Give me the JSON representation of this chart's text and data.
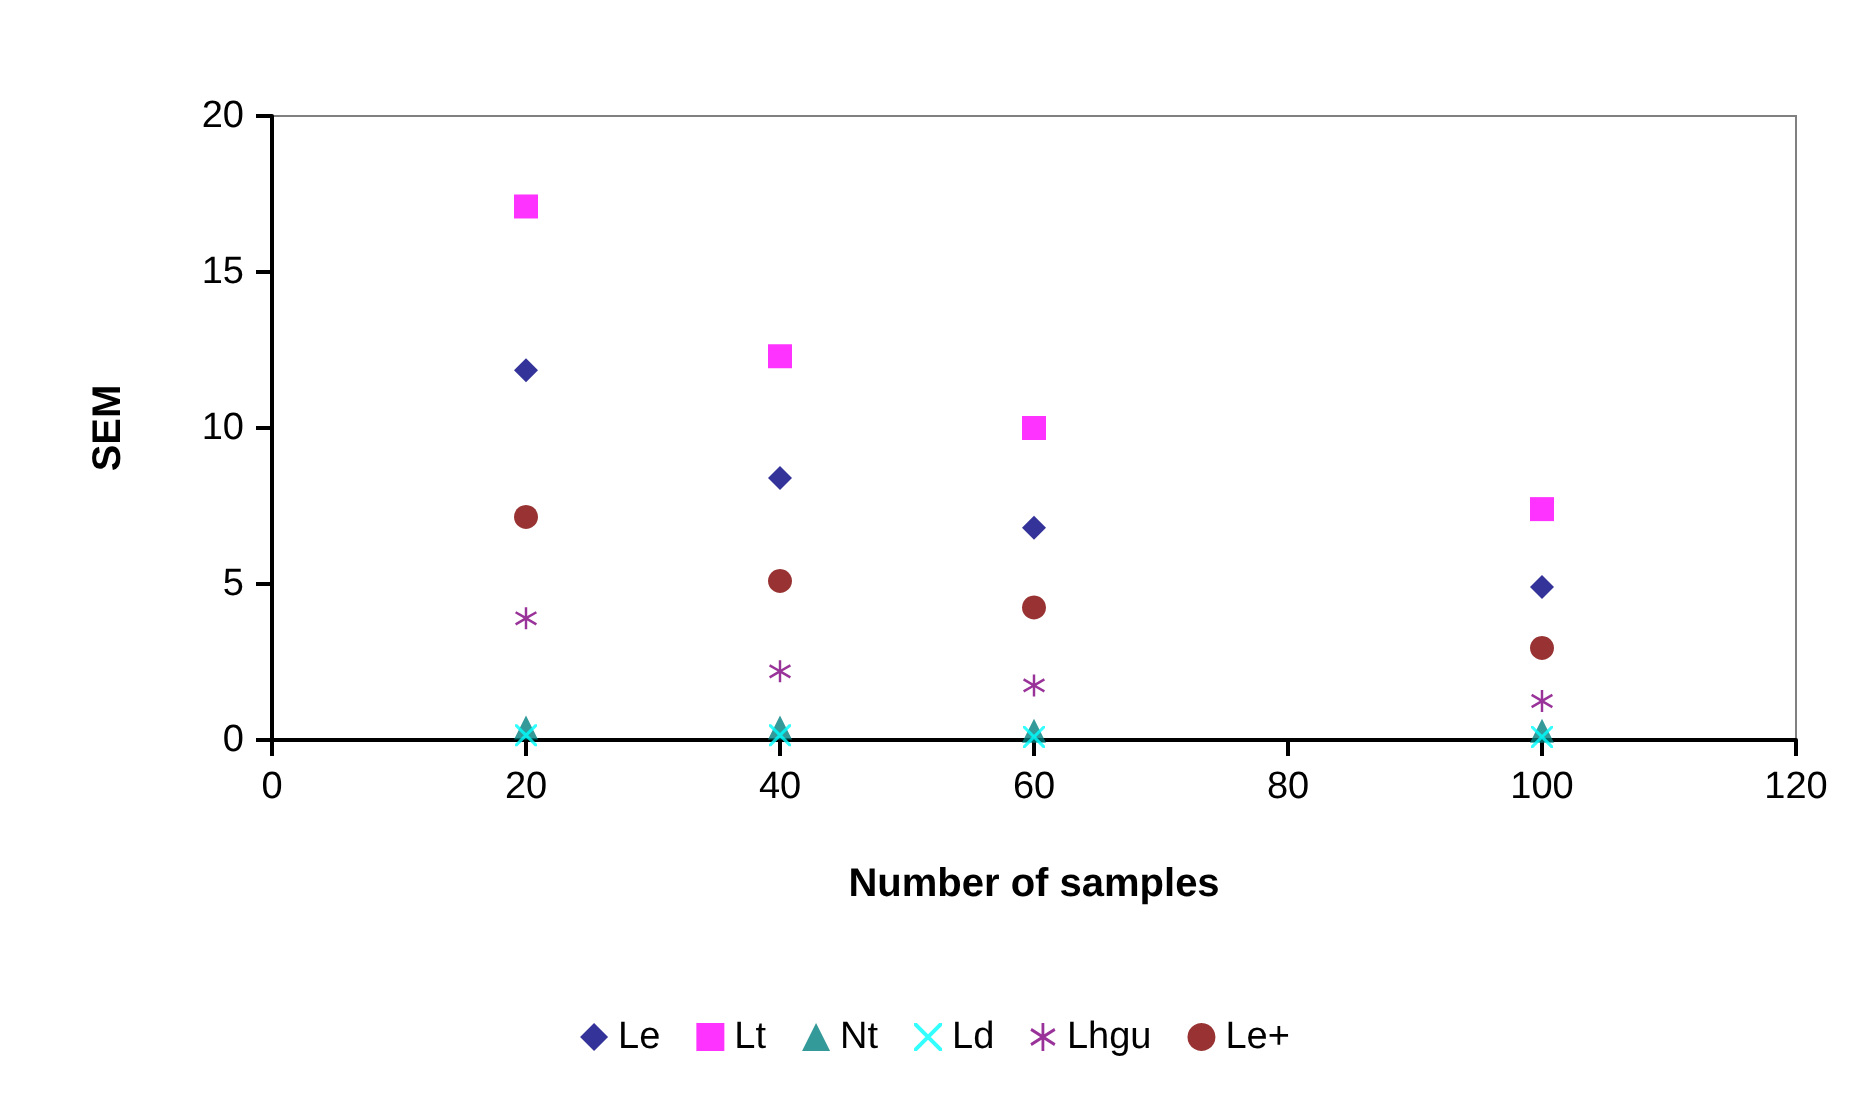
{
  "chart_data": {
    "type": "scatter",
    "xlabel": "Number of samples",
    "ylabel": "SEM",
    "x": [
      20,
      40,
      60,
      100
    ],
    "series": [
      {
        "name": "Le",
        "color": "#000080",
        "marker": "diamond",
        "values": [
          11.85,
          8.4,
          6.8,
          4.9
        ]
      },
      {
        "name": "Lt",
        "color": "#ff00ff",
        "marker": "square",
        "values": [
          17.1,
          12.3,
          10.0,
          7.4
        ]
      },
      {
        "name": "Nt",
        "color": "#008080",
        "marker": "triangle",
        "values": [
          0.4,
          0.4,
          0.3,
          0.3
        ]
      },
      {
        "name": "Ld",
        "color": "#00ffff",
        "marker": "cross",
        "values": [
          0.15,
          0.15,
          0.1,
          0.1
        ]
      },
      {
        "name": "Lhgu",
        "color": "#800080",
        "marker": "star",
        "values": [
          3.9,
          2.2,
          1.75,
          1.25
        ]
      },
      {
        "name": "Le+",
        "color": "#800000",
        "marker": "circle",
        "values": [
          7.15,
          5.1,
          4.25,
          2.95
        ]
      }
    ],
    "xlim": [
      0,
      120
    ],
    "xticks": [
      0,
      20,
      40,
      60,
      80,
      100,
      120
    ],
    "ylim": [
      0,
      20
    ],
    "yticks": [
      0,
      5,
      10,
      15,
      20
    ],
    "grid": false,
    "legend": "bottom"
  }
}
